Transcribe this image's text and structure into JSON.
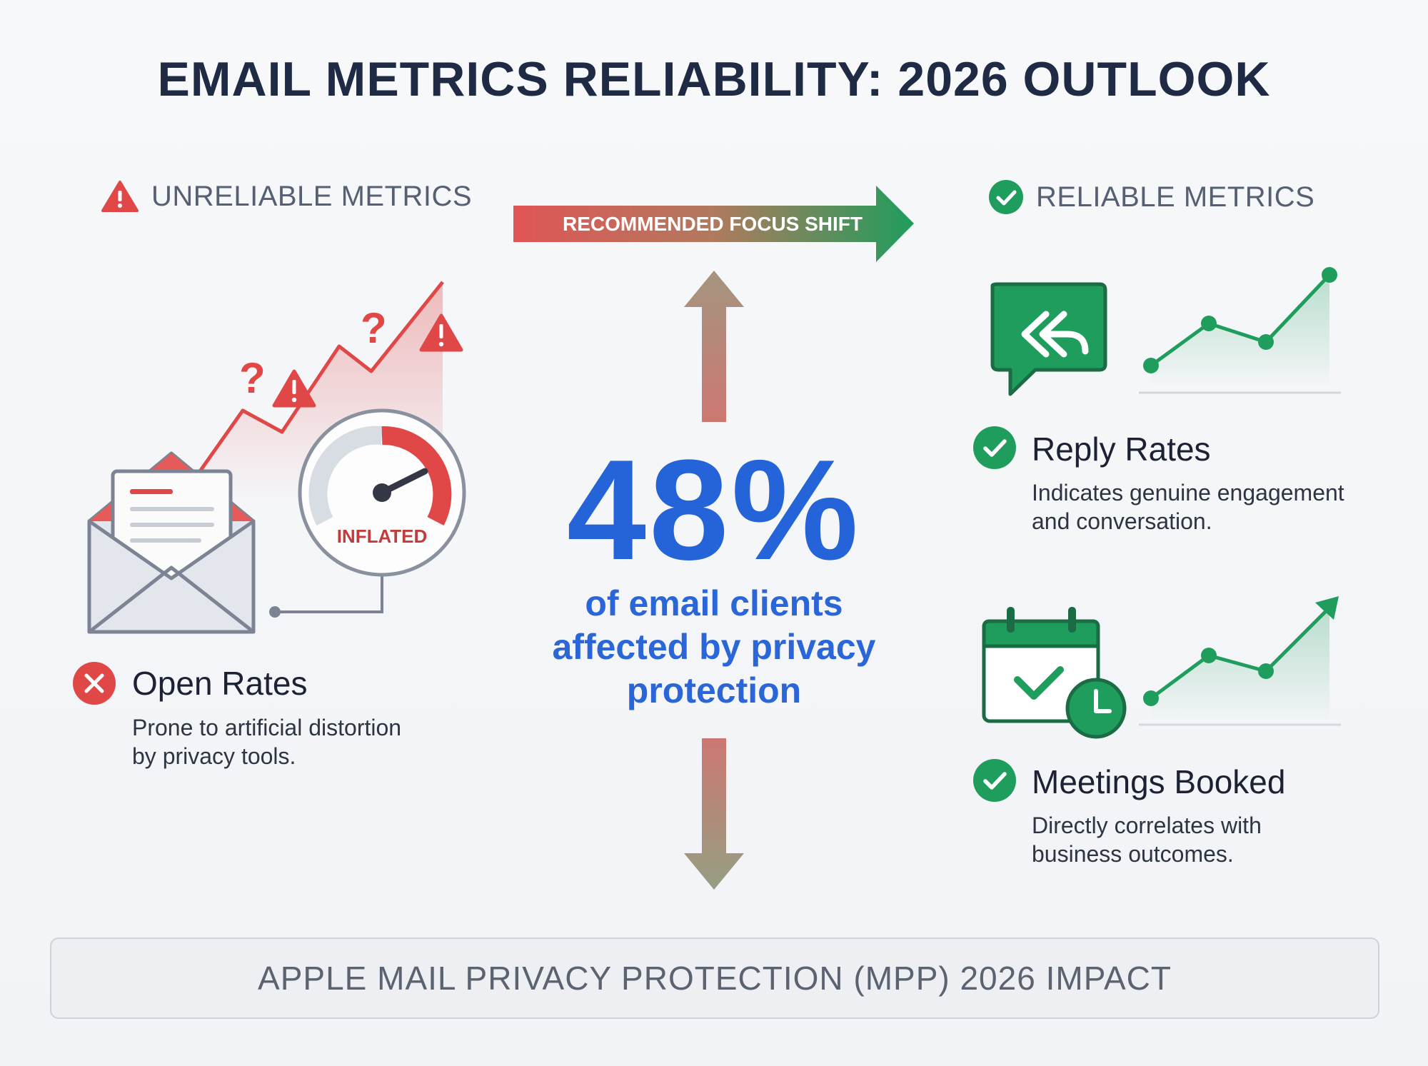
{
  "title": "EMAIL METRICS RELIABILITY: 2026 OUTLOOK",
  "unreliable": {
    "heading": "UNRELIABLE METRICS",
    "gauge_label": "INFLATED",
    "metric": {
      "name": "Open Rates",
      "description_line1": "Prone to artificial distortion",
      "description_line2": "by privacy tools."
    }
  },
  "focus_shift": {
    "label": "RECOMMENDED FOCUS SHIFT"
  },
  "center": {
    "value": "48%",
    "sub_line1": "of email clients",
    "sub_line2": "affected by privacy",
    "sub_line3": "protection"
  },
  "reliable": {
    "heading": "RELIABLE METRICS",
    "metrics": [
      {
        "name": "Reply Rates",
        "description_line1": "Indicates genuine engagement",
        "description_line2": "and conversation."
      },
      {
        "name": "Meetings Booked",
        "description_line1": "Directly correlates with",
        "description_line2": "business outcomes."
      }
    ]
  },
  "footer": {
    "label": "APPLE MAIL PRIVACY PROTECTION (MPP) 2026 IMPACT"
  },
  "colors": {
    "red": "#e04848",
    "green": "#1f9d5c",
    "blue": "#2563d9",
    "navy": "#1f2b45"
  },
  "icons": {
    "warning": "warning-triangle-icon",
    "check": "check-circle-icon",
    "cross": "x-circle-icon",
    "envelope": "open-envelope-icon",
    "gauge": "speedometer-gauge-icon",
    "reply": "reply-chat-bubble-icon",
    "calendar": "calendar-check-icon"
  }
}
